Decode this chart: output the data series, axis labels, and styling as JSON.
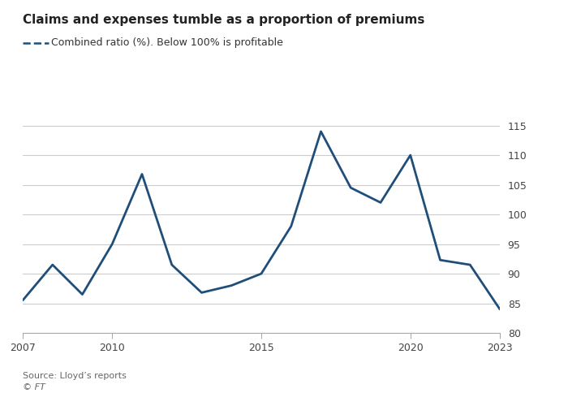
{
  "title": "Claims and expenses tumble as a proportion of premiums",
  "legend_label": "Combined ratio (%). Below 100% is profitable",
  "source": "Source: Lloyd’s reports",
  "copyright": "© FT",
  "years": [
    2007,
    2008,
    2009,
    2010,
    2011,
    2012,
    2013,
    2014,
    2015,
    2016,
    2017,
    2018,
    2019,
    2020,
    2021,
    2022,
    2023
  ],
  "values": [
    85.5,
    91.5,
    86.5,
    95.0,
    106.8,
    91.5,
    86.8,
    88.0,
    90.0,
    98.0,
    114.0,
    104.5,
    102.0,
    110.0,
    92.3,
    91.5,
    84.0
  ],
  "line_color": "#1f4e79",
  "line_width": 2.0,
  "ylim": [
    80,
    117
  ],
  "yticks": [
    80,
    85,
    90,
    95,
    100,
    105,
    110,
    115
  ],
  "xlim": [
    2007,
    2023
  ],
  "xticks": [
    2007,
    2010,
    2015,
    2020,
    2023
  ],
  "background_color": "#ffffff",
  "grid_color": "#cccccc",
  "title_fontsize": 11,
  "legend_fontsize": 9,
  "tick_fontsize": 9,
  "source_fontsize": 8
}
